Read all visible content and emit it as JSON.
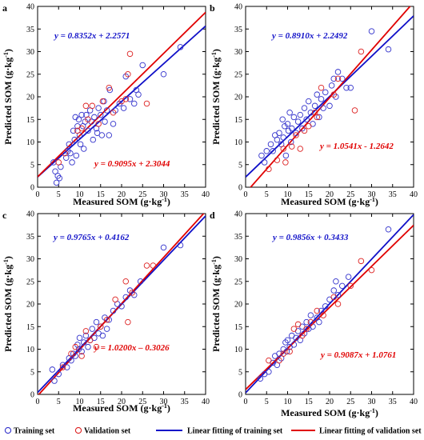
{
  "colors": {
    "training": "#3333cc",
    "validation": "#dd2222",
    "training_line": "#1010c8",
    "validation_line": "#e00000"
  },
  "legend": {
    "training_set": "Training set",
    "validation_set": "Validation set",
    "training_fit": "Linear fitting of training set",
    "validation_fit": "Linear fitting of validation set"
  },
  "chart_data": [
    {
      "panel": "a",
      "type": "scatter",
      "xlabel": "Measured SOM (g·kg",
      "ylabel": "Predicted SOM (g·kg",
      "unit_sup": "-1",
      "unit_close": ")",
      "xlim": [
        0,
        40
      ],
      "ylim": [
        0,
        40
      ],
      "x_ticks": [
        0,
        5,
        10,
        15,
        20,
        25,
        30,
        35,
        40
      ],
      "y_ticks": [
        0,
        5,
        10,
        15,
        20,
        25,
        30,
        35,
        40
      ],
      "grid": false,
      "training_fit": {
        "slope": 0.8352,
        "intercept": 2.2571,
        "label": "y = 0.8352x + 2.2571"
      },
      "validation_fit": {
        "slope": 0.9095,
        "intercept": 2.3044,
        "label": "y = 0.9095x + 2.3044"
      },
      "series": [
        {
          "name": "Training set",
          "points": [
            [
              3.8,
              5.5
            ],
            [
              4.2,
              3.5
            ],
            [
              4.5,
              1.0
            ],
            [
              4.8,
              2.5
            ],
            [
              5.2,
              2.0
            ],
            [
              5.5,
              4.5
            ],
            [
              6.8,
              6.5
            ],
            [
              7.2,
              8.0
            ],
            [
              7.5,
              9.5
            ],
            [
              7.8,
              7.5
            ],
            [
              8.2,
              5.5
            ],
            [
              8.5,
              12.5
            ],
            [
              8.8,
              10.5
            ],
            [
              9.0,
              15.5
            ],
            [
              9.2,
              7.0
            ],
            [
              9.5,
              13.5
            ],
            [
              9.8,
              15.0
            ],
            [
              10.0,
              11.5
            ],
            [
              10.2,
              9.5
            ],
            [
              10.5,
              16.0
            ],
            [
              10.8,
              13.5
            ],
            [
              11.0,
              8.5
            ],
            [
              11.3,
              14.5
            ],
            [
              11.6,
              16.0
            ],
            [
              12.0,
              12.5
            ],
            [
              12.5,
              17.0
            ],
            [
              12.8,
              14.5
            ],
            [
              13.2,
              10.5
            ],
            [
              13.5,
              15.5
            ],
            [
              14.0,
              13.0
            ],
            [
              14.2,
              12.0
            ],
            [
              14.5,
              17.5
            ],
            [
              15.0,
              16.0
            ],
            [
              15.3,
              11.5
            ],
            [
              15.8,
              19.0
            ],
            [
              16.0,
              14.5
            ],
            [
              16.5,
              17.0
            ],
            [
              17.0,
              11.5
            ],
            [
              17.2,
              21.5
            ],
            [
              18.0,
              14.0
            ],
            [
              18.5,
              17.0
            ],
            [
              19.5,
              18.5
            ],
            [
              20.5,
              17.5
            ],
            [
              21.0,
              24.5
            ],
            [
              22.0,
              19.5
            ],
            [
              23.0,
              18.5
            ],
            [
              23.5,
              21.5
            ],
            [
              24.0,
              20.5
            ],
            [
              25.0,
              27.0
            ],
            [
              30.0,
              25.0
            ],
            [
              34.0,
              31.0
            ]
          ]
        },
        {
          "name": "Validation set",
          "points": [
            [
              5.0,
              5.5
            ],
            [
              6.5,
              7.5
            ],
            [
              9.5,
              12.5
            ],
            [
              10.5,
              13.0
            ],
            [
              11.5,
              18.0
            ],
            [
              12.0,
              15.0
            ],
            [
              13.0,
              18.0
            ],
            [
              14.5,
              14.0
            ],
            [
              15.5,
              19.0
            ],
            [
              17.0,
              22.0
            ],
            [
              18.0,
              16.5
            ],
            [
              20.0,
              19.0
            ],
            [
              21.0,
              19.5
            ],
            [
              21.5,
              25.0
            ],
            [
              22.0,
              29.5
            ],
            [
              26.0,
              18.5
            ]
          ]
        }
      ]
    },
    {
      "panel": "b",
      "type": "scatter",
      "xlabel": "Measured SOM (g·kg",
      "ylabel": "Predicted SOM (g·kg",
      "unit_sup": "-1",
      "unit_close": ")",
      "xlim": [
        0,
        40
      ],
      "ylim": [
        0,
        40
      ],
      "x_ticks": [
        0,
        5,
        10,
        15,
        20,
        25,
        30,
        35,
        40
      ],
      "y_ticks": [
        0,
        5,
        10,
        15,
        20,
        25,
        30,
        35,
        40
      ],
      "grid": false,
      "training_fit": {
        "slope": 0.891,
        "intercept": 2.2492,
        "label": "y = 0.8910x + 2.2492"
      },
      "validation_fit": {
        "slope": 1.0541,
        "intercept": -1.2642,
        "label": "y = 1.0541x - 1.2642"
      },
      "series": [
        {
          "name": "Training set",
          "points": [
            [
              3.8,
              7.0
            ],
            [
              4.5,
              5.5
            ],
            [
              5.0,
              8.0
            ],
            [
              6.0,
              9.5
            ],
            [
              6.5,
              8.0
            ],
            [
              7.0,
              11.5
            ],
            [
              7.5,
              10.5
            ],
            [
              8.0,
              12.0
            ],
            [
              8.5,
              9.5
            ],
            [
              8.8,
              15.0
            ],
            [
              9.0,
              11.0
            ],
            [
              9.3,
              13.5
            ],
            [
              9.6,
              7.0
            ],
            [
              10.0,
              14.0
            ],
            [
              10.2,
              12.5
            ],
            [
              10.5,
              16.5
            ],
            [
              10.8,
              10.0
            ],
            [
              11.0,
              13.0
            ],
            [
              11.5,
              15.5
            ],
            [
              12.0,
              12.0
            ],
            [
              12.5,
              14.5
            ],
            [
              13.0,
              16.0
            ],
            [
              13.5,
              13.0
            ],
            [
              14.0,
              17.5
            ],
            [
              14.5,
              15.0
            ],
            [
              15.0,
              19.0
            ],
            [
              15.5,
              16.5
            ],
            [
              16.0,
              14.0
            ],
            [
              16.5,
              18.0
            ],
            [
              17.0,
              20.5
            ],
            [
              17.5,
              15.5
            ],
            [
              18.0,
              19.5
            ],
            [
              18.5,
              17.5
            ],
            [
              19.0,
              21.0
            ],
            [
              20.0,
              18.0
            ],
            [
              20.5,
              22.5
            ],
            [
              21.0,
              24.0
            ],
            [
              21.5,
              20.0
            ],
            [
              22.0,
              25.5
            ],
            [
              23.0,
              24.0
            ],
            [
              24.0,
              22.0
            ],
            [
              25.0,
              22.0
            ],
            [
              30.0,
              34.5
            ],
            [
              34.0,
              30.5
            ]
          ]
        },
        {
          "name": "Validation set",
          "points": [
            [
              5.5,
              4.0
            ],
            [
              7.5,
              6.0
            ],
            [
              9.0,
              8.5
            ],
            [
              9.5,
              5.5
            ],
            [
              11.0,
              9.0
            ],
            [
              12.0,
              11.5
            ],
            [
              13.0,
              8.5
            ],
            [
              14.0,
              12.5
            ],
            [
              15.0,
              13.5
            ],
            [
              16.5,
              16.5
            ],
            [
              17.0,
              15.5
            ],
            [
              18.0,
              22.0
            ],
            [
              21.0,
              20.5
            ],
            [
              22.0,
              24.0
            ],
            [
              26.0,
              17.0
            ],
            [
              27.5,
              30.0
            ]
          ]
        }
      ]
    },
    {
      "panel": "c",
      "type": "scatter",
      "xlabel": "Measured SOM (g·kg",
      "ylabel": "Predicted SOM (g·kg",
      "unit_sup": "-1",
      "unit_close": ")",
      "xlim": [
        0,
        40
      ],
      "ylim": [
        0,
        40
      ],
      "x_ticks": [
        0,
        5,
        10,
        15,
        20,
        25,
        30,
        35,
        40
      ],
      "y_ticks": [
        0,
        5,
        10,
        15,
        20,
        25,
        30,
        35,
        40
      ],
      "grid": false,
      "training_fit": {
        "slope": 0.9765,
        "intercept": 0.4162,
        "label": "y = 0.9765x + 0.4162"
      },
      "validation_fit": {
        "slope": 1.02,
        "intercept": -0.3026,
        "label": "y = 1.0200x – 0.3026"
      },
      "series": [
        {
          "name": "Training set",
          "points": [
            [
              3.5,
              5.5
            ],
            [
              4.0,
              3.0
            ],
            [
              5.0,
              4.5
            ],
            [
              6.0,
              6.5
            ],
            [
              7.0,
              6.0
            ],
            [
              7.5,
              8.0
            ],
            [
              8.0,
              7.5
            ],
            [
              8.5,
              9.0
            ],
            [
              9.0,
              8.5
            ],
            [
              9.5,
              11.0
            ],
            [
              9.8,
              10.0
            ],
            [
              10.0,
              12.5
            ],
            [
              10.5,
              9.5
            ],
            [
              11.0,
              11.5
            ],
            [
              11.5,
              13.0
            ],
            [
              12.0,
              10.5
            ],
            [
              12.5,
              12.0
            ],
            [
              13.0,
              14.5
            ],
            [
              13.5,
              12.5
            ],
            [
              14.0,
              16.0
            ],
            [
              14.5,
              13.5
            ],
            [
              15.0,
              15.0
            ],
            [
              15.5,
              13.0
            ],
            [
              16.0,
              17.0
            ],
            [
              16.5,
              14.5
            ],
            [
              17.0,
              16.5
            ],
            [
              18.0,
              18.5
            ],
            [
              19.0,
              20.0
            ],
            [
              20.0,
              19.5
            ],
            [
              21.0,
              21.5
            ],
            [
              22.0,
              23.0
            ],
            [
              23.0,
              22.0
            ],
            [
              24.5,
              25.0
            ],
            [
              30.0,
              32.5
            ],
            [
              34.0,
              33.0
            ]
          ]
        },
        {
          "name": "Validation set",
          "points": [
            [
              6.0,
              6.0
            ],
            [
              8.0,
              9.0
            ],
            [
              9.0,
              10.5
            ],
            [
              10.5,
              8.5
            ],
            [
              11.5,
              14.0
            ],
            [
              12.5,
              12.0
            ],
            [
              14.0,
              10.5
            ],
            [
              15.0,
              15.0
            ],
            [
              16.5,
              16.5
            ],
            [
              18.5,
              21.0
            ],
            [
              21.0,
              25.0
            ],
            [
              21.5,
              16.0
            ],
            [
              22.5,
              22.5
            ],
            [
              26.0,
              28.5
            ],
            [
              27.5,
              28.5
            ]
          ]
        }
      ]
    },
    {
      "panel": "d",
      "type": "scatter",
      "xlabel": "Measured SOM (g·kg",
      "ylabel": "Predicted SOM (g·kg",
      "unit_sup": "-1",
      "unit_close": ")",
      "xlim": [
        0,
        40
      ],
      "ylim": [
        0,
        40
      ],
      "x_ticks": [
        0,
        5,
        10,
        15,
        20,
        25,
        30,
        35,
        40
      ],
      "y_ticks": [
        0,
        5,
        10,
        15,
        20,
        25,
        30,
        35,
        40
      ],
      "grid": false,
      "training_fit": {
        "slope": 0.9856,
        "intercept": 0.3433,
        "label": "y = 0.9856x + 0.3433"
      },
      "validation_fit": {
        "slope": 0.9087,
        "intercept": 1.0761,
        "label": "y = 0.9087x + 1.0761"
      },
      "series": [
        {
          "name": "Training set",
          "points": [
            [
              3.5,
              3.5
            ],
            [
              4.5,
              4.5
            ],
            [
              5.5,
              5.0
            ],
            [
              6.5,
              7.0
            ],
            [
              7.0,
              8.5
            ],
            [
              7.5,
              6.5
            ],
            [
              8.0,
              9.0
            ],
            [
              8.5,
              8.0
            ],
            [
              9.0,
              10.0
            ],
            [
              9.5,
              11.5
            ],
            [
              9.8,
              9.5
            ],
            [
              10.0,
              12.0
            ],
            [
              10.5,
              10.5
            ],
            [
              11.0,
              13.0
            ],
            [
              11.5,
              11.0
            ],
            [
              12.0,
              12.5
            ],
            [
              12.5,
              14.0
            ],
            [
              13.0,
              12.0
            ],
            [
              13.5,
              15.0
            ],
            [
              14.0,
              13.5
            ],
            [
              14.5,
              16.0
            ],
            [
              15.0,
              14.5
            ],
            [
              15.5,
              17.5
            ],
            [
              16.0,
              15.0
            ],
            [
              17.0,
              17.0
            ],
            [
              17.5,
              16.0
            ],
            [
              18.0,
              18.5
            ],
            [
              19.0,
              19.5
            ],
            [
              20.0,
              21.0
            ],
            [
              21.0,
              23.0
            ],
            [
              21.5,
              25.0
            ],
            [
              22.0,
              22.0
            ],
            [
              23.0,
              24.0
            ],
            [
              24.5,
              26.0
            ],
            [
              34.0,
              36.5
            ]
          ]
        },
        {
          "name": "Validation set",
          "points": [
            [
              5.5,
              7.5
            ],
            [
              8.0,
              7.5
            ],
            [
              9.0,
              9.0
            ],
            [
              10.5,
              9.5
            ],
            [
              11.5,
              14.5
            ],
            [
              12.5,
              15.5
            ],
            [
              13.5,
              13.0
            ],
            [
              14.5,
              14.5
            ],
            [
              15.5,
              16.0
            ],
            [
              17.0,
              18.5
            ],
            [
              18.5,
              17.5
            ],
            [
              21.0,
              21.5
            ],
            [
              22.0,
              20.0
            ],
            [
              25.0,
              24.0
            ],
            [
              27.5,
              29.5
            ],
            [
              30.0,
              27.5
            ]
          ]
        }
      ]
    }
  ]
}
